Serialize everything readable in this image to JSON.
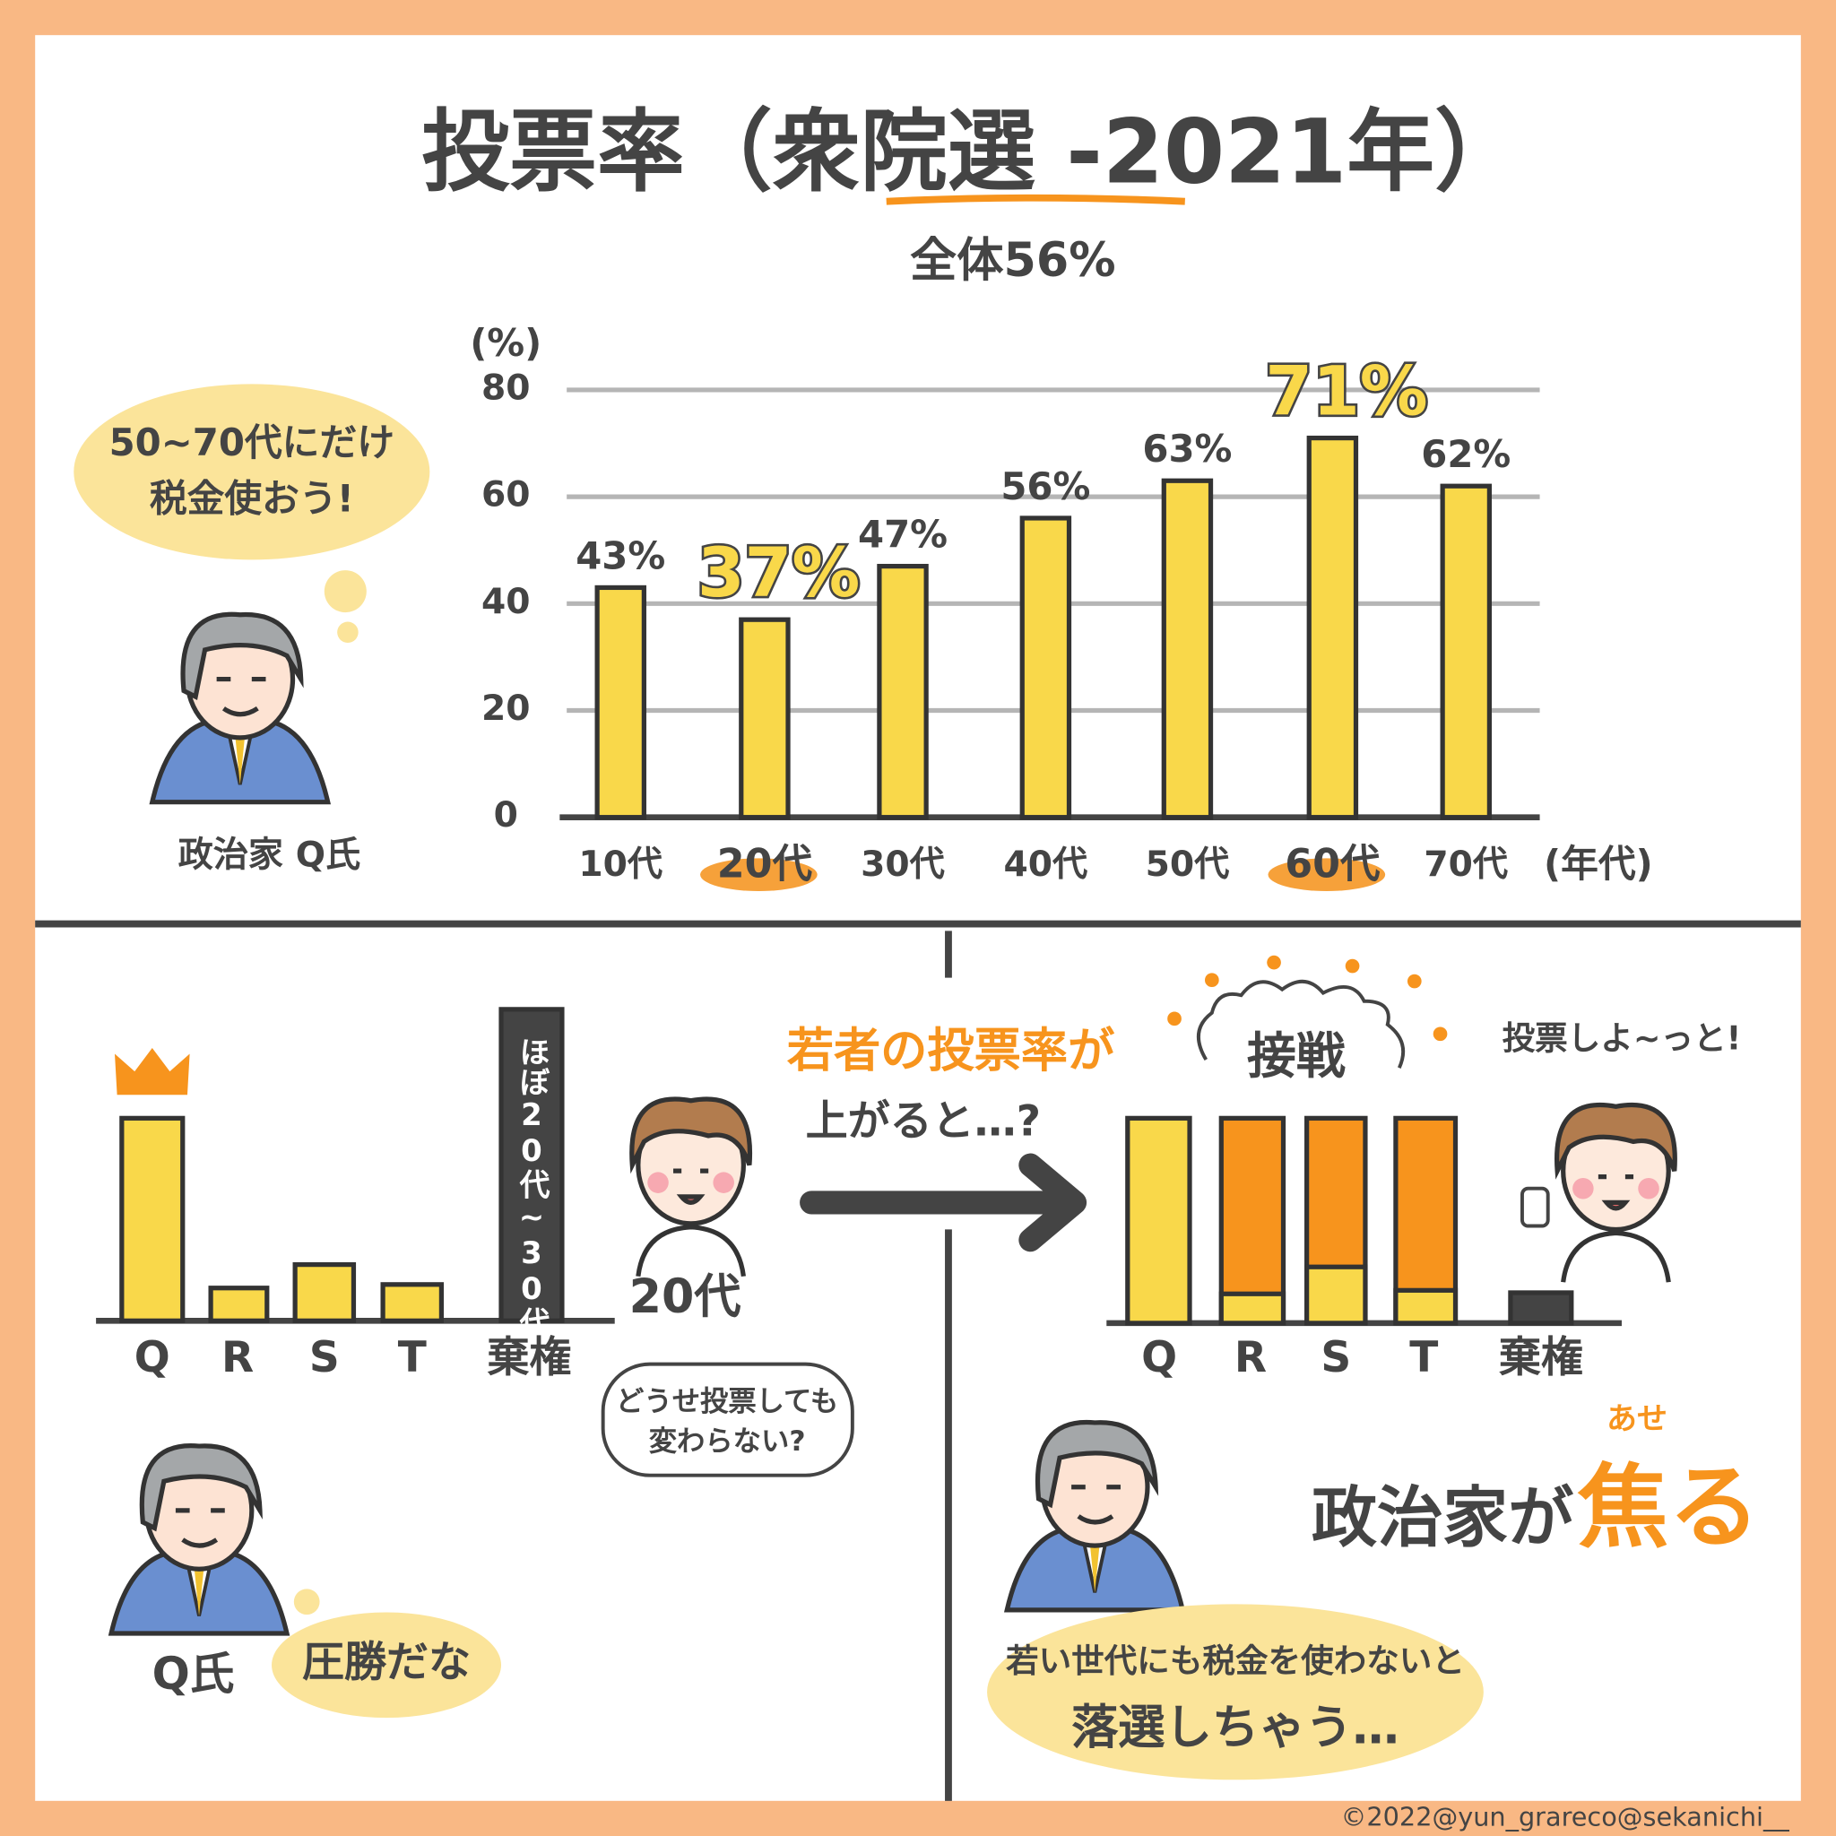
{
  "chart_data": {
    "type": "bar",
    "title": "投票率（衆院選 -2021年）",
    "subtitle": "全体56%",
    "y_label": "(%)",
    "x_label": "(年代)",
    "categories": [
      "10代",
      "20代",
      "30代",
      "40代",
      "50代",
      "60代",
      "70代"
    ],
    "values": [
      43,
      37,
      47,
      56,
      63,
      71,
      62
    ],
    "value_labels": [
      "43%",
      "37%",
      "47%",
      "56%",
      "63%",
      "71%",
      "62%"
    ],
    "color": "#f9d84a",
    "ylim": [
      0,
      80
    ],
    "yticks": [
      0,
      20,
      40,
      60,
      80
    ],
    "grid": true
  },
  "top_panel": {
    "bubble": [
      "50~70代にだけ",
      "税金使おう!"
    ],
    "person_label": "政治家 Q氏"
  },
  "left_panel": {
    "candidates": [
      "Q",
      "R",
      "S",
      "T",
      "棄権"
    ],
    "abstain_note": "ほぼ20代~30代",
    "youth_label": "20代",
    "youth_bubble": [
      "どうせ投票しても",
      "変わらない?"
    ],
    "politician_label": "Q氏",
    "politician_bubble": "圧勝だな"
  },
  "middle": {
    "caption": [
      "若者の投票率が",
      "上がると…?"
    ]
  },
  "right_panel": {
    "candidates": [
      "Q",
      "R",
      "S",
      "T",
      "棄権"
    ],
    "headline": "接戦",
    "youth_bubble": "投票しよ~っと!",
    "result": "政治家が",
    "result_emphasis": "焦る",
    "ruby": "あせ",
    "politician_bubble": [
      "若い世代にも税金を使わないと",
      "落選しちゃう…"
    ]
  },
  "credit": "©2022@yun_grareco@sekanichi__"
}
